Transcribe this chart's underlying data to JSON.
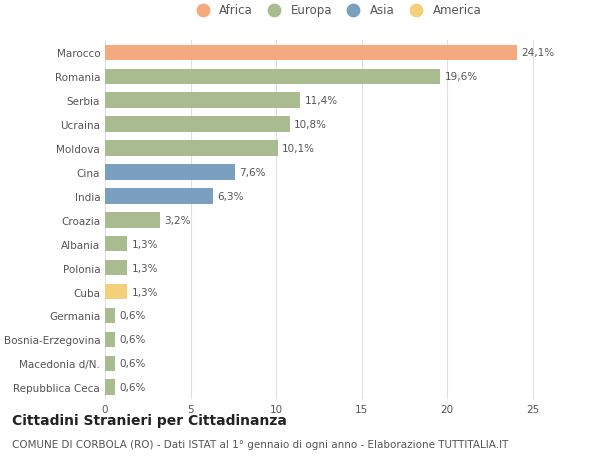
{
  "countries": [
    "Repubblica Ceca",
    "Macedonia d/N.",
    "Bosnia-Erzegovina",
    "Germania",
    "Cuba",
    "Polonia",
    "Albania",
    "Croazia",
    "India",
    "Cina",
    "Moldova",
    "Ucraina",
    "Serbia",
    "Romania",
    "Marocco"
  ],
  "values": [
    0.6,
    0.6,
    0.6,
    0.6,
    1.3,
    1.3,
    1.3,
    3.2,
    6.3,
    7.6,
    10.1,
    10.8,
    11.4,
    19.6,
    24.1
  ],
  "labels": [
    "0,6%",
    "0,6%",
    "0,6%",
    "0,6%",
    "1,3%",
    "1,3%",
    "1,3%",
    "3,2%",
    "6,3%",
    "7,6%",
    "10,1%",
    "10,8%",
    "11,4%",
    "19,6%",
    "24,1%"
  ],
  "bar_colors": [
    "#A8BC8F",
    "#A8BC8F",
    "#A8BC8F",
    "#A8BC8F",
    "#F5D07A",
    "#A8BC8F",
    "#A8BC8F",
    "#A8BC8F",
    "#7A9FBF",
    "#7A9FBF",
    "#A8BC8F",
    "#A8BC8F",
    "#A8BC8F",
    "#A8BC8F",
    "#F4A97F"
  ],
  "colors": {
    "Africa": "#F4A97F",
    "Europa": "#A8BC8F",
    "Asia": "#7A9FBF",
    "America": "#F5D07A"
  },
  "legend_order": [
    "Africa",
    "Europa",
    "Asia",
    "America"
  ],
  "xlim": [
    0,
    27
  ],
  "xticks": [
    0,
    5,
    10,
    15,
    20,
    25
  ],
  "title": "Cittadini Stranieri per Cittadinanza",
  "subtitle": "COMUNE DI CORBOLA (RO) - Dati ISTAT al 1° gennaio di ogni anno - Elaborazione TUTTITALIA.IT",
  "background_color": "#ffffff",
  "grid_color": "#e0e0e0",
  "bar_height": 0.65,
  "title_fontsize": 10,
  "subtitle_fontsize": 7.5,
  "label_fontsize": 7.5,
  "tick_fontsize": 7.5,
  "legend_fontsize": 8.5
}
